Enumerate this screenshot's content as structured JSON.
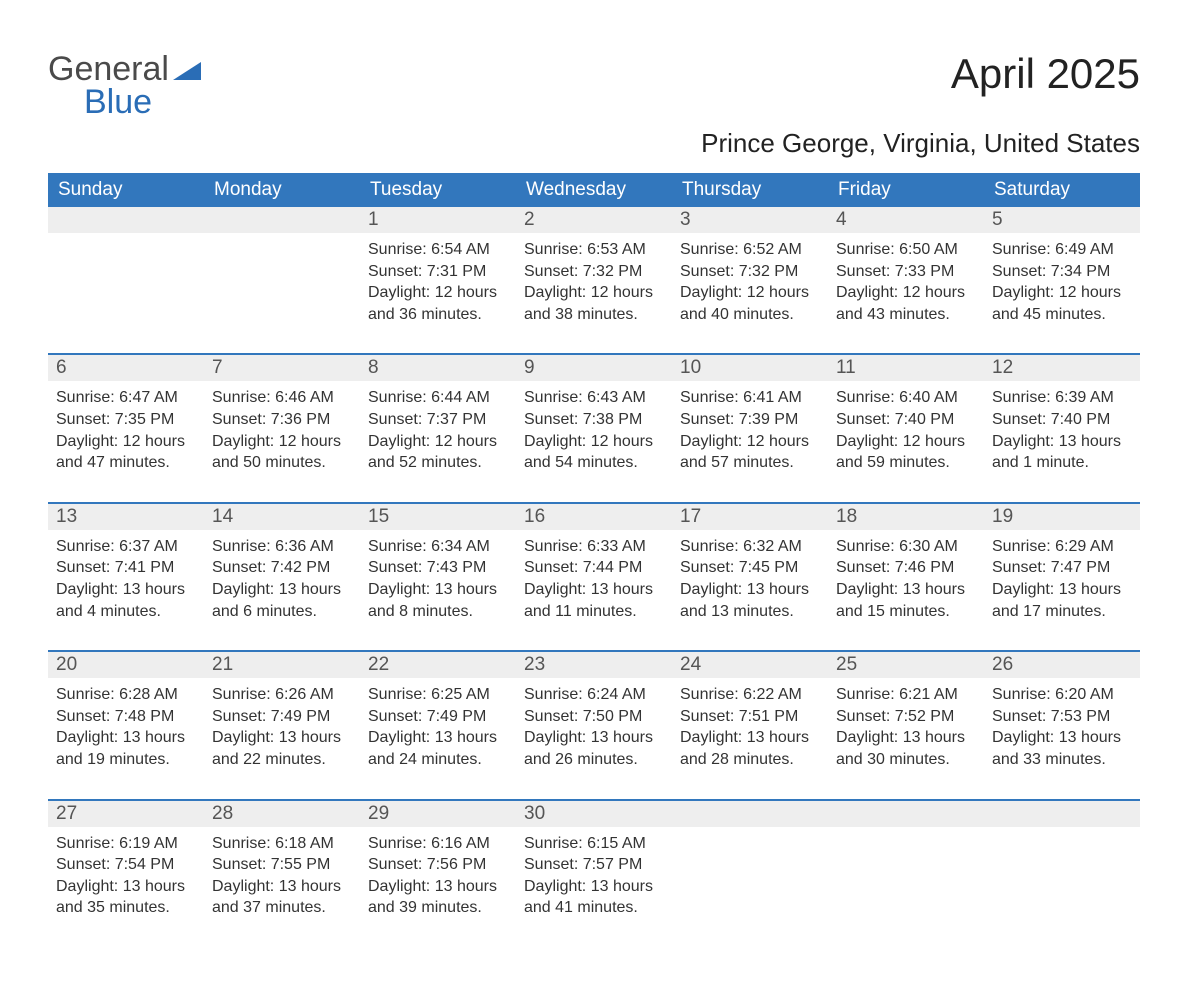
{
  "brand": {
    "part1": "General",
    "part2": "Blue",
    "color_text": "#4a4a4a",
    "color_blue": "#2a6db6",
    "swoosh_color": "#2a6db6"
  },
  "title": "April 2025",
  "location": "Prince George, Virginia, United States",
  "style": {
    "header_bg": "#3277bd",
    "header_fg": "#ffffff",
    "row_separator": "#3277bd",
    "daynum_bg": "#eeeeee",
    "body_bg": "#ffffff",
    "text_color": "#333333",
    "title_fontsize": 42,
    "location_fontsize": 26,
    "header_fontsize": 19,
    "day_fontsize": 19,
    "cell_fontsize": 16
  },
  "day_headers": [
    "Sunday",
    "Monday",
    "Tuesday",
    "Wednesday",
    "Thursday",
    "Friday",
    "Saturday"
  ],
  "weeks": [
    [
      {
        "day": "",
        "sunrise": "",
        "sunset": "",
        "daylight": ""
      },
      {
        "day": "",
        "sunrise": "",
        "sunset": "",
        "daylight": ""
      },
      {
        "day": "1",
        "sunrise": "Sunrise: 6:54 AM",
        "sunset": "Sunset: 7:31 PM",
        "daylight": "Daylight: 12 hours and 36 minutes."
      },
      {
        "day": "2",
        "sunrise": "Sunrise: 6:53 AM",
        "sunset": "Sunset: 7:32 PM",
        "daylight": "Daylight: 12 hours and 38 minutes."
      },
      {
        "day": "3",
        "sunrise": "Sunrise: 6:52 AM",
        "sunset": "Sunset: 7:32 PM",
        "daylight": "Daylight: 12 hours and 40 minutes."
      },
      {
        "day": "4",
        "sunrise": "Sunrise: 6:50 AM",
        "sunset": "Sunset: 7:33 PM",
        "daylight": "Daylight: 12 hours and 43 minutes."
      },
      {
        "day": "5",
        "sunrise": "Sunrise: 6:49 AM",
        "sunset": "Sunset: 7:34 PM",
        "daylight": "Daylight: 12 hours and 45 minutes."
      }
    ],
    [
      {
        "day": "6",
        "sunrise": "Sunrise: 6:47 AM",
        "sunset": "Sunset: 7:35 PM",
        "daylight": "Daylight: 12 hours and 47 minutes."
      },
      {
        "day": "7",
        "sunrise": "Sunrise: 6:46 AM",
        "sunset": "Sunset: 7:36 PM",
        "daylight": "Daylight: 12 hours and 50 minutes."
      },
      {
        "day": "8",
        "sunrise": "Sunrise: 6:44 AM",
        "sunset": "Sunset: 7:37 PM",
        "daylight": "Daylight: 12 hours and 52 minutes."
      },
      {
        "day": "9",
        "sunrise": "Sunrise: 6:43 AM",
        "sunset": "Sunset: 7:38 PM",
        "daylight": "Daylight: 12 hours and 54 minutes."
      },
      {
        "day": "10",
        "sunrise": "Sunrise: 6:41 AM",
        "sunset": "Sunset: 7:39 PM",
        "daylight": "Daylight: 12 hours and 57 minutes."
      },
      {
        "day": "11",
        "sunrise": "Sunrise: 6:40 AM",
        "sunset": "Sunset: 7:40 PM",
        "daylight": "Daylight: 12 hours and 59 minutes."
      },
      {
        "day": "12",
        "sunrise": "Sunrise: 6:39 AM",
        "sunset": "Sunset: 7:40 PM",
        "daylight": "Daylight: 13 hours and 1 minute."
      }
    ],
    [
      {
        "day": "13",
        "sunrise": "Sunrise: 6:37 AM",
        "sunset": "Sunset: 7:41 PM",
        "daylight": "Daylight: 13 hours and 4 minutes."
      },
      {
        "day": "14",
        "sunrise": "Sunrise: 6:36 AM",
        "sunset": "Sunset: 7:42 PM",
        "daylight": "Daylight: 13 hours and 6 minutes."
      },
      {
        "day": "15",
        "sunrise": "Sunrise: 6:34 AM",
        "sunset": "Sunset: 7:43 PM",
        "daylight": "Daylight: 13 hours and 8 minutes."
      },
      {
        "day": "16",
        "sunrise": "Sunrise: 6:33 AM",
        "sunset": "Sunset: 7:44 PM",
        "daylight": "Daylight: 13 hours and 11 minutes."
      },
      {
        "day": "17",
        "sunrise": "Sunrise: 6:32 AM",
        "sunset": "Sunset: 7:45 PM",
        "daylight": "Daylight: 13 hours and 13 minutes."
      },
      {
        "day": "18",
        "sunrise": "Sunrise: 6:30 AM",
        "sunset": "Sunset: 7:46 PM",
        "daylight": "Daylight: 13 hours and 15 minutes."
      },
      {
        "day": "19",
        "sunrise": "Sunrise: 6:29 AM",
        "sunset": "Sunset: 7:47 PM",
        "daylight": "Daylight: 13 hours and 17 minutes."
      }
    ],
    [
      {
        "day": "20",
        "sunrise": "Sunrise: 6:28 AM",
        "sunset": "Sunset: 7:48 PM",
        "daylight": "Daylight: 13 hours and 19 minutes."
      },
      {
        "day": "21",
        "sunrise": "Sunrise: 6:26 AM",
        "sunset": "Sunset: 7:49 PM",
        "daylight": "Daylight: 13 hours and 22 minutes."
      },
      {
        "day": "22",
        "sunrise": "Sunrise: 6:25 AM",
        "sunset": "Sunset: 7:49 PM",
        "daylight": "Daylight: 13 hours and 24 minutes."
      },
      {
        "day": "23",
        "sunrise": "Sunrise: 6:24 AM",
        "sunset": "Sunset: 7:50 PM",
        "daylight": "Daylight: 13 hours and 26 minutes."
      },
      {
        "day": "24",
        "sunrise": "Sunrise: 6:22 AM",
        "sunset": "Sunset: 7:51 PM",
        "daylight": "Daylight: 13 hours and 28 minutes."
      },
      {
        "day": "25",
        "sunrise": "Sunrise: 6:21 AM",
        "sunset": "Sunset: 7:52 PM",
        "daylight": "Daylight: 13 hours and 30 minutes."
      },
      {
        "day": "26",
        "sunrise": "Sunrise: 6:20 AM",
        "sunset": "Sunset: 7:53 PM",
        "daylight": "Daylight: 13 hours and 33 minutes."
      }
    ],
    [
      {
        "day": "27",
        "sunrise": "Sunrise: 6:19 AM",
        "sunset": "Sunset: 7:54 PM",
        "daylight": "Daylight: 13 hours and 35 minutes."
      },
      {
        "day": "28",
        "sunrise": "Sunrise: 6:18 AM",
        "sunset": "Sunset: 7:55 PM",
        "daylight": "Daylight: 13 hours and 37 minutes."
      },
      {
        "day": "29",
        "sunrise": "Sunrise: 6:16 AM",
        "sunset": "Sunset: 7:56 PM",
        "daylight": "Daylight: 13 hours and 39 minutes."
      },
      {
        "day": "30",
        "sunrise": "Sunrise: 6:15 AM",
        "sunset": "Sunset: 7:57 PM",
        "daylight": "Daylight: 13 hours and 41 minutes."
      },
      {
        "day": "",
        "sunrise": "",
        "sunset": "",
        "daylight": ""
      },
      {
        "day": "",
        "sunrise": "",
        "sunset": "",
        "daylight": ""
      },
      {
        "day": "",
        "sunrise": "",
        "sunset": "",
        "daylight": ""
      }
    ]
  ]
}
